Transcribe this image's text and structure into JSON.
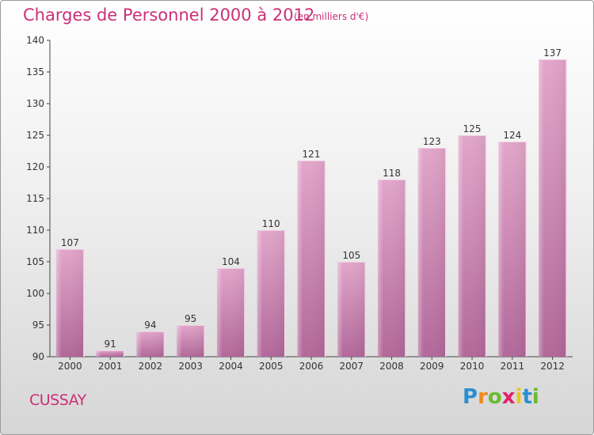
{
  "chart_data": {
    "type": "bar",
    "title": "Charges de Personnel 2000 à 2012",
    "subtitle": "(en milliers d'€)",
    "categories": [
      "2000",
      "2001",
      "2002",
      "2003",
      "2004",
      "2005",
      "2006",
      "2007",
      "2008",
      "2009",
      "2010",
      "2011",
      "2012"
    ],
    "values": [
      107,
      91,
      94,
      95,
      104,
      110,
      121,
      105,
      118,
      123,
      125,
      124,
      137
    ],
    "ylim": [
      90,
      140
    ],
    "yticks": [
      90,
      95,
      100,
      105,
      110,
      115,
      120,
      125,
      130,
      135,
      140
    ],
    "grid": false,
    "bar_color": "#d98fbb",
    "bar_color_dark": "#a85a88",
    "label_color": "#cc2f78"
  },
  "footer": {
    "place": "CUSSAY",
    "logo_letters": [
      {
        "ch": "P",
        "color": "#2a8fd0"
      },
      {
        "ch": "r",
        "color": "#f08a1c"
      },
      {
        "ch": "o",
        "color": "#6cbb2f"
      },
      {
        "ch": "x",
        "color": "#e0206a"
      },
      {
        "ch": "i",
        "color": "#f0c419"
      },
      {
        "ch": "t",
        "color": "#2a8fd0"
      },
      {
        "ch": "i",
        "color": "#6cbb2f"
      }
    ]
  }
}
